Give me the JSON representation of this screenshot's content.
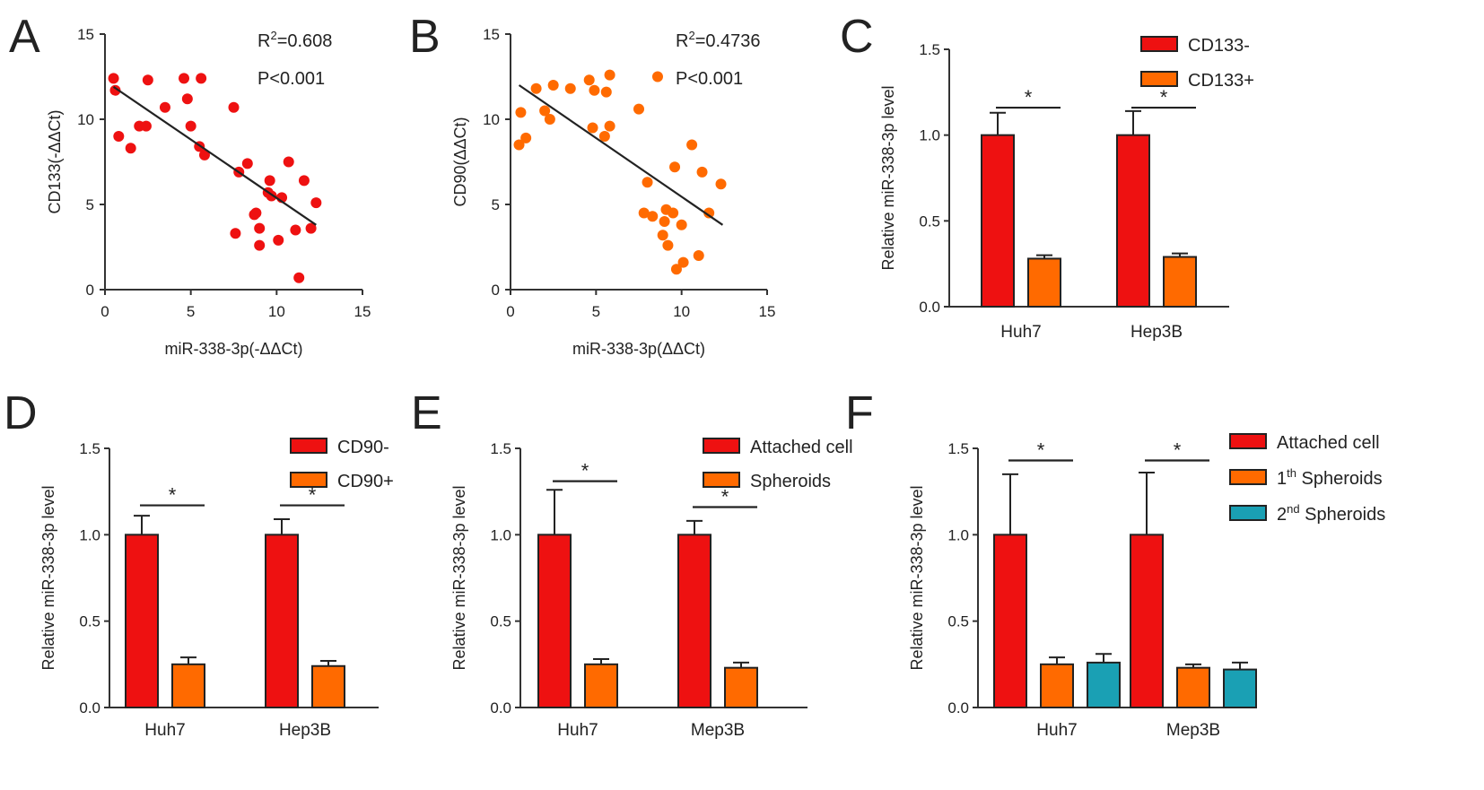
{
  "colors": {
    "red": "#ee1111",
    "orange": "#ff6a00",
    "teal": "#1aa0b4",
    "axis": "#333333"
  },
  "chart_data": [
    {
      "panel": "A",
      "type": "scatter",
      "xlabel": "miR-338-3p(-ΔΔCt)",
      "ylabel": "CD133(-ΔΔCt)",
      "xlim": [
        0,
        15
      ],
      "ylim": [
        0,
        15
      ],
      "xticks": [
        "0",
        "5",
        "10",
        "15"
      ],
      "yticks": [
        "0",
        "5",
        "10",
        "15"
      ],
      "color_key": "red",
      "stats": {
        "r2_label": "R",
        "r2_sup": "2",
        "r2_value": "=0.608",
        "p": "P<0.001"
      },
      "fit": {
        "x": [
          0.5,
          12.3
        ],
        "y": [
          11.9,
          3.8
        ]
      },
      "points": [
        [
          0.5,
          12.4
        ],
        [
          0.6,
          11.7
        ],
        [
          0.8,
          9.0
        ],
        [
          1.5,
          8.3
        ],
        [
          2.0,
          9.6
        ],
        [
          2.4,
          9.6
        ],
        [
          2.5,
          12.3
        ],
        [
          3.5,
          10.7
        ],
        [
          4.6,
          12.4
        ],
        [
          4.8,
          11.2
        ],
        [
          5.0,
          9.6
        ],
        [
          5.5,
          8.4
        ],
        [
          5.6,
          12.4
        ],
        [
          5.8,
          7.9
        ],
        [
          7.5,
          10.7
        ],
        [
          7.6,
          3.3
        ],
        [
          7.8,
          6.9
        ],
        [
          8.3,
          7.4
        ],
        [
          8.7,
          4.4
        ],
        [
          8.8,
          4.5
        ],
        [
          9.0,
          2.6
        ],
        [
          9.0,
          3.6
        ],
        [
          9.5,
          5.7
        ],
        [
          9.6,
          6.4
        ],
        [
          9.7,
          5.5
        ],
        [
          10.1,
          2.9
        ],
        [
          10.3,
          5.4
        ],
        [
          10.7,
          7.5
        ],
        [
          11.1,
          3.5
        ],
        [
          11.3,
          0.7
        ],
        [
          11.6,
          6.4
        ],
        [
          12.0,
          3.6
        ],
        [
          12.3,
          5.1
        ]
      ]
    },
    {
      "panel": "B",
      "type": "scatter",
      "xlabel": "miR-338-3p(ΔΔCt)",
      "ylabel": "CD90(ΔΔCt)",
      "xlim": [
        0,
        15
      ],
      "ylim": [
        0,
        15
      ],
      "xticks": [
        "0",
        "5",
        "10",
        "15"
      ],
      "yticks": [
        "0",
        "5",
        "10",
        "15"
      ],
      "color_key": "orange",
      "stats": {
        "r2_label": "R",
        "r2_sup": "2",
        "r2_value": "=0.4736",
        "p": "P<0.001"
      },
      "fit": {
        "x": [
          0.5,
          12.4
        ],
        "y": [
          12.0,
          3.8
        ]
      },
      "points": [
        [
          0.5,
          8.5
        ],
        [
          0.6,
          10.4
        ],
        [
          0.9,
          8.9
        ],
        [
          1.5,
          11.8
        ],
        [
          2.0,
          10.5
        ],
        [
          2.3,
          10.0
        ],
        [
          2.5,
          12.0
        ],
        [
          3.5,
          11.8
        ],
        [
          4.6,
          12.3
        ],
        [
          4.8,
          9.5
        ],
        [
          4.9,
          11.7
        ],
        [
          5.5,
          9.0
        ],
        [
          5.6,
          11.6
        ],
        [
          5.8,
          12.6
        ],
        [
          5.8,
          9.6
        ],
        [
          7.5,
          10.6
        ],
        [
          7.8,
          4.5
        ],
        [
          8.0,
          6.3
        ],
        [
          8.3,
          4.3
        ],
        [
          8.6,
          12.5
        ],
        [
          8.9,
          3.2
        ],
        [
          9.0,
          4.0
        ],
        [
          9.1,
          4.7
        ],
        [
          9.2,
          2.6
        ],
        [
          9.5,
          4.5
        ],
        [
          9.6,
          7.2
        ],
        [
          9.7,
          1.2
        ],
        [
          10.0,
          3.8
        ],
        [
          10.1,
          1.6
        ],
        [
          10.6,
          8.5
        ],
        [
          11.0,
          2.0
        ],
        [
          11.2,
          6.9
        ],
        [
          11.6,
          4.5
        ],
        [
          12.3,
          6.2
        ]
      ]
    },
    {
      "panel": "C",
      "type": "bar",
      "ylabel": "Relative miR-338-3p level",
      "ylim": [
        0,
        1.5
      ],
      "yticks": [
        "0.0",
        "0.5",
        "1.0",
        "1.5"
      ],
      "categories": [
        "Huh7",
        "Hep3B"
      ],
      "series": [
        {
          "name": "CD133-",
          "color_key": "red",
          "values": [
            1.0,
            1.0
          ],
          "errors": [
            0.13,
            0.14
          ]
        },
        {
          "name": "CD133+",
          "color_key": "orange",
          "values": [
            0.28,
            0.29
          ],
          "errors": [
            0.02,
            0.02
          ]
        }
      ],
      "significance": [
        {
          "category": 0,
          "star": "*",
          "y": 1.16
        },
        {
          "category": 1,
          "star": "*",
          "y": 1.16
        }
      ]
    },
    {
      "panel": "D",
      "type": "bar",
      "ylabel": "Relative miR-338-3p level",
      "ylim": [
        0,
        1.5
      ],
      "yticks": [
        "0.0",
        "0.5",
        "1.0",
        "1.5"
      ],
      "categories": [
        "Huh7",
        "Hep3B"
      ],
      "series": [
        {
          "name": "CD90-",
          "color_key": "red",
          "values": [
            1.0,
            1.0
          ],
          "errors": [
            0.11,
            0.09
          ]
        },
        {
          "name": "CD90+",
          "color_key": "orange",
          "values": [
            0.25,
            0.24
          ],
          "errors": [
            0.04,
            0.03
          ]
        }
      ],
      "significance": [
        {
          "category": 0,
          "star": "*",
          "y": 1.17
        },
        {
          "category": 1,
          "star": "*",
          "y": 1.17
        }
      ]
    },
    {
      "panel": "E",
      "type": "bar",
      "ylabel": "Relative miR-338-3p level",
      "ylim": [
        0,
        1.5
      ],
      "yticks": [
        "0.0",
        "0.5",
        "1.0",
        "1.5"
      ],
      "categories": [
        "Huh7",
        "Mep3B"
      ],
      "series": [
        {
          "name": "Attached cell",
          "color_key": "red",
          "values": [
            1.0,
            1.0
          ],
          "errors": [
            0.26,
            0.08
          ]
        },
        {
          "name": "Spheroids",
          "color_key": "orange",
          "values": [
            0.25,
            0.23
          ],
          "errors": [
            0.03,
            0.03
          ]
        }
      ],
      "significance": [
        {
          "category": 0,
          "star": "*",
          "y": 1.31
        },
        {
          "category": 1,
          "star": "*",
          "y": 1.16
        }
      ]
    },
    {
      "panel": "F",
      "type": "bar",
      "ylabel": "Relative miR-338-3p level",
      "ylim": [
        0,
        1.5
      ],
      "yticks": [
        "0.0",
        "0.5",
        "1.0",
        "1.5"
      ],
      "categories": [
        "Huh7",
        "Mep3B"
      ],
      "series": [
        {
          "name": "Attached cell",
          "color_key": "red",
          "values": [
            1.0,
            1.0
          ],
          "errors": [
            0.35,
            0.36
          ]
        },
        {
          "name": "1th Spheroids",
          "name_base": "1",
          "name_sup": "th",
          "name_rest": " Spheroids",
          "color_key": "orange",
          "values": [
            0.25,
            0.23
          ],
          "errors": [
            0.04,
            0.02
          ]
        },
        {
          "name": "2nd Spheroids",
          "name_base": "2",
          "name_sup": "nd",
          "name_rest": " Spheroids",
          "color_key": "teal",
          "values": [
            0.26,
            0.22
          ],
          "errors": [
            0.05,
            0.04
          ]
        }
      ],
      "significance": [
        {
          "category": 0,
          "star": "*",
          "y": 1.43
        },
        {
          "category": 1,
          "star": "*",
          "y": 1.43
        }
      ]
    }
  ]
}
